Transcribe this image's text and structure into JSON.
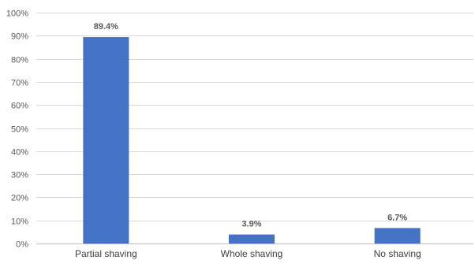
{
  "chart_data": {
    "type": "bar",
    "title": "",
    "xlabel": "",
    "ylabel": "",
    "categories": [
      "Partial shaving",
      "Whole shaving",
      "No shaving"
    ],
    "values": [
      89.4,
      3.9,
      6.7
    ],
    "data_labels": [
      "89.4%",
      "3.9%",
      "6.7%"
    ],
    "ylim": [
      0,
      100
    ],
    "yticks": [
      0,
      10,
      20,
      30,
      40,
      50,
      60,
      70,
      80,
      90,
      100
    ],
    "ytick_labels": [
      "0%",
      "10%",
      "20%",
      "30%",
      "40%",
      "50%",
      "60%",
      "70%",
      "80%",
      "90%",
      "100%"
    ],
    "grid": true,
    "legend": "none",
    "bar_color": "#4472c4"
  }
}
